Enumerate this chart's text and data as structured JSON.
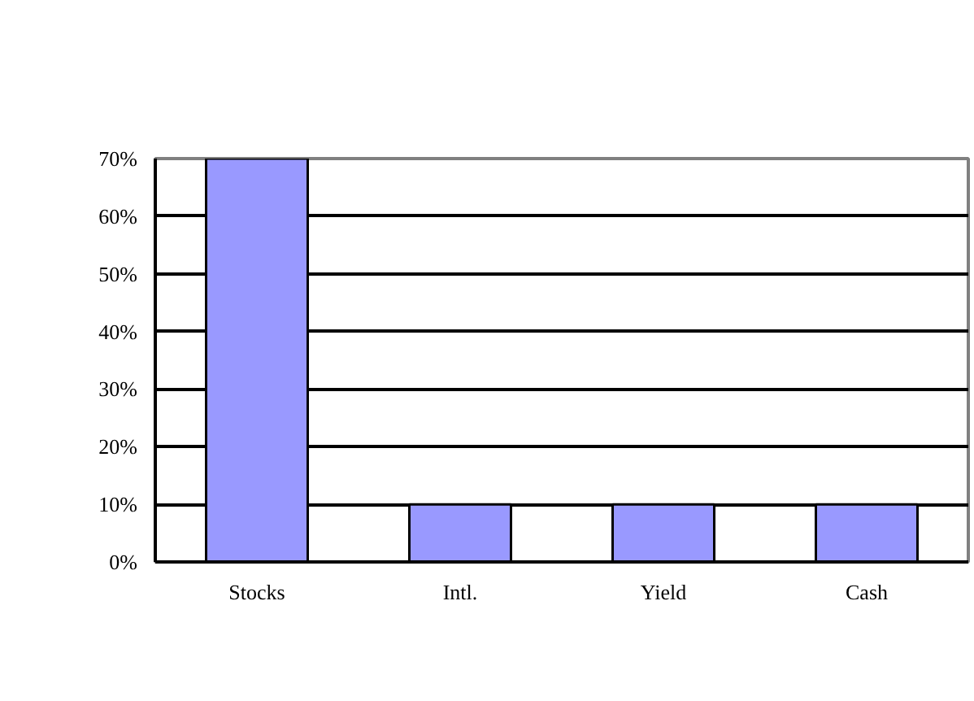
{
  "chart_data": {
    "type": "bar",
    "categories": [
      "Stocks",
      "Intl.",
      "Yield",
      "Cash"
    ],
    "values": [
      70,
      10,
      10,
      10
    ],
    "color": "#9999ff",
    "ylim": [
      0,
      70
    ],
    "yticks": [
      {
        "value": 0,
        "label": "0%"
      },
      {
        "value": 10,
        "label": "10%"
      },
      {
        "value": 20,
        "label": "20%"
      },
      {
        "value": 30,
        "label": "30%"
      },
      {
        "value": 40,
        "label": "40%"
      },
      {
        "value": 50,
        "label": "50%"
      },
      {
        "value": 60,
        "label": "60%"
      },
      {
        "value": 70,
        "label": "70%"
      }
    ],
    "grid": "y"
  }
}
